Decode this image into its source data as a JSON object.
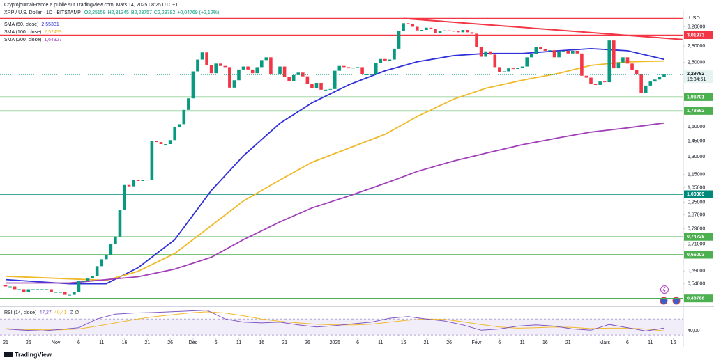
{
  "header": "CryptojournalFrance a publié sur TradingView.com, Mars 14, 2025 08:25 UTC+1",
  "footer": "TradingView",
  "chart_data": {
    "type": "candlestick",
    "symbol": "XRP / U.S. Dollar · 1D · BITSTAMP",
    "ohlc_labels": [
      "O2,25159",
      "H2,31345",
      "B2,23757",
      "C2,29782",
      "+0,04769 (+2,12%)"
    ],
    "currency": "USD",
    "log_scale": true,
    "grid": false,
    "ylim": [
      0.462,
      3.6
    ],
    "yticks": [
      {
        "value": 3.2,
        "label": "3,20000"
      },
      {
        "value": 2.8,
        "label": "2,80000"
      },
      {
        "value": 2.5,
        "label": "2,50000"
      },
      {
        "value": 1.6,
        "label": "1,60000"
      },
      {
        "value": 1.45,
        "label": "1,45000"
      },
      {
        "value": 1.3,
        "label": "1,30000"
      },
      {
        "value": 1.15,
        "label": "1,15000"
      },
      {
        "value": 1.05,
        "label": "1,05000"
      },
      {
        "value": 0.95,
        "label": "0,95000"
      },
      {
        "value": 0.87,
        "label": "0,87000"
      },
      {
        "value": 0.79,
        "label": "0,79000"
      },
      {
        "value": 0.71,
        "label": "0,71000"
      },
      {
        "value": 0.59,
        "label": "0,59000"
      },
      {
        "value": 0.54,
        "label": "0,54000"
      }
    ],
    "xlim": [
      -1.22,
      148.2
    ],
    "xticks": [
      {
        "value": 0,
        "label": "21"
      },
      {
        "value": 5,
        "label": "26"
      },
      {
        "value": 11,
        "label": "Nov"
      },
      {
        "value": 16,
        "label": "6"
      },
      {
        "value": 21,
        "label": "11"
      },
      {
        "value": 26,
        "label": "16"
      },
      {
        "value": 31,
        "label": "21"
      },
      {
        "value": 36,
        "label": "26"
      },
      {
        "value": 41,
        "label": "Déc"
      },
      {
        "value": 46,
        "label": "6"
      },
      {
        "value": 51,
        "label": "11"
      },
      {
        "value": 56,
        "label": "16"
      },
      {
        "value": 61,
        "label": "21"
      },
      {
        "value": 66,
        "label": "26"
      },
      {
        "value": 72,
        "label": "2025"
      },
      {
        "value": 77,
        "label": "6"
      },
      {
        "value": 82,
        "label": "11"
      },
      {
        "value": 87,
        "label": "16"
      },
      {
        "value": 92,
        "label": "21"
      },
      {
        "value": 97,
        "label": "26"
      },
      {
        "value": 103,
        "label": "Févr"
      },
      {
        "value": 108,
        "label": "6"
      },
      {
        "value": 113,
        "label": "11"
      },
      {
        "value": 118,
        "label": "16"
      },
      {
        "value": 123,
        "label": "21"
      },
      {
        "value": 131,
        "label": "Mars"
      },
      {
        "value": 136,
        "label": "6"
      },
      {
        "value": 141,
        "label": "11"
      },
      {
        "value": 146,
        "label": "16"
      }
    ],
    "first_open": 0.535,
    "close": [
      0.53,
      0.53,
      0.52,
      0.52,
      0.51,
      0.52,
      0.52,
      0.52,
      0.52,
      0.52,
      0.51,
      0.51,
      0.51,
      0.5,
      0.5,
      0.51,
      0.55,
      0.55,
      0.56,
      0.57,
      0.61,
      0.64,
      0.66,
      0.71,
      0.75,
      0.9,
      1.07,
      1.06,
      1.11,
      1.1,
      1.11,
      1.11,
      1.45,
      1.44,
      1.42,
      1.42,
      1.46,
      1.6,
      1.63,
      1.8,
      1.95,
      2.35,
      2.55,
      2.68,
      2.46,
      2.32,
      2.48,
      2.44,
      2.42,
      2.1,
      2.21,
      2.38,
      2.43,
      2.38,
      2.32,
      2.42,
      2.54,
      2.59,
      2.31,
      2.31,
      2.43,
      2.26,
      2.2,
      2.29,
      2.33,
      2.27,
      2.15,
      2.09,
      2.17,
      2.07,
      2.07,
      2.08,
      2.36,
      2.44,
      2.42,
      2.4,
      2.41,
      2.42,
      2.3,
      2.3,
      2.3,
      2.49,
      2.56,
      2.53,
      2.55,
      2.75,
      3.1,
      3.28,
      3.27,
      3.2,
      3.12,
      3.13,
      3.18,
      3.15,
      3.07,
      3.11,
      3.12,
      3.11,
      3.1,
      3.08,
      3.13,
      3.08,
      3.05,
      2.78,
      2.6,
      2.7,
      2.64,
      2.42,
      2.34,
      2.35,
      2.4,
      2.39,
      2.41,
      2.43,
      2.59,
      2.65,
      2.78,
      2.74,
      2.71,
      2.72,
      2.59,
      2.7,
      2.71,
      2.66,
      2.71,
      2.66,
      2.28,
      2.25,
      2.15,
      2.14,
      2.19,
      2.18,
      2.91,
      2.4,
      2.5,
      2.59,
      2.48,
      2.37,
      2.3,
      2.02,
      2.13,
      2.19,
      2.22,
      2.26,
      2.29782
    ],
    "up_color": "#089981",
    "down_color": "#f23645",
    "last_price_label": "2,29782",
    "countdown": "16:34:51",
    "series": [
      {
        "name": "SMA (50, close)",
        "legend_value": "2,55331",
        "color": "#3030d8",
        "x": [
          0,
          14,
          22,
          29,
          37,
          45,
          52,
          60,
          67,
          75,
          83,
          90,
          98,
          105,
          113,
          121,
          128,
          136,
          144
        ],
        "values": [
          0.556,
          0.54,
          0.54,
          0.604,
          0.733,
          1.03,
          1.31,
          1.64,
          1.89,
          2.14,
          2.36,
          2.51,
          2.62,
          2.66,
          2.66,
          2.71,
          2.75,
          2.71,
          2.55331
        ]
      },
      {
        "name": "SMA (100, close)",
        "legend_value": "2,52459",
        "color": "#f0b92a",
        "x": [
          0,
          22,
          29,
          37,
          45,
          52,
          60,
          67,
          75,
          83,
          90,
          98,
          105,
          113,
          121,
          128,
          136,
          144
        ],
        "values": [
          0.569,
          0.553,
          0.589,
          0.666,
          0.808,
          0.958,
          1.108,
          1.252,
          1.38,
          1.52,
          1.72,
          1.94,
          2.09,
          2.21,
          2.32,
          2.45,
          2.51,
          2.52459
        ]
      },
      {
        "name": "SMA (200, close)",
        "legend_value": "1,64327",
        "color": "#a040b8",
        "x": [
          0,
          14,
          29,
          37,
          45,
          52,
          60,
          67,
          75,
          83,
          90,
          98,
          105,
          113,
          121,
          128,
          136,
          144
        ],
        "values": [
          0.543,
          0.543,
          0.567,
          0.598,
          0.649,
          0.733,
          0.829,
          0.913,
          0.991,
          1.082,
          1.175,
          1.264,
          1.333,
          1.414,
          1.484,
          1.543,
          1.589,
          1.64327
        ]
      }
    ],
    "levels": [
      {
        "value": 3.39,
        "color": "#f23645"
      },
      {
        "value": 3.01973,
        "label": "3,01973",
        "color": "#f23645"
      },
      {
        "value": 1.96701,
        "label": "1,96701",
        "color": "#4caf50"
      },
      {
        "value": 1.78662,
        "label": "1,78662",
        "color": "#4caf50"
      },
      {
        "value": 1.00369,
        "label": "1,00369",
        "color": "#00897b"
      },
      {
        "value": 0.74728,
        "label": "0,74728",
        "color": "#4caf50"
      },
      {
        "value": 0.66003,
        "label": "0,66003",
        "color": "#4caf50"
      },
      {
        "value": 0.48788,
        "label": "0,48788",
        "color": "#4caf50"
      }
    ],
    "trendline": {
      "x": [
        87,
        148
      ],
      "values": [
        3.39,
        2.93
      ],
      "color": "#f23645"
    },
    "rsi": {
      "name": "RSI (14, close)",
      "legend_values": [
        "47,27",
        "40,41",
        "∅ ∅"
      ],
      "ylim": [
        25,
        100
      ],
      "band": [
        30,
        70
      ],
      "yticks": [
        {
          "value": 40,
          "label": "40,00"
        }
      ],
      "x": [
        0,
        4,
        8,
        12,
        16,
        20,
        24,
        28,
        32,
        36,
        40,
        44,
        48,
        52,
        56,
        60,
        64,
        68,
        72,
        76,
        80,
        84,
        88,
        92,
        96,
        100,
        104,
        108,
        112,
        116,
        120,
        124,
        128,
        132,
        136,
        140,
        144
      ],
      "values": [
        45,
        42,
        40,
        44,
        48,
        70,
        82,
        85,
        86,
        88,
        90,
        92,
        70,
        62,
        60,
        62,
        55,
        50,
        53,
        58,
        62,
        72,
        76,
        70,
        65,
        55,
        42,
        45,
        52,
        55,
        52,
        45,
        42,
        56,
        48,
        40,
        47.27
      ],
      "ma": [
        46,
        44,
        43,
        43,
        45,
        52,
        60,
        68,
        75,
        80,
        85,
        88,
        85,
        78,
        70,
        64,
        60,
        57,
        55,
        55,
        57,
        62,
        67,
        70,
        69,
        63,
        56,
        50,
        47,
        48,
        50,
        49,
        46,
        47,
        47,
        45,
        40.41
      ],
      "color": "#7e57c2",
      "ma_color": "#f0b92a"
    }
  }
}
